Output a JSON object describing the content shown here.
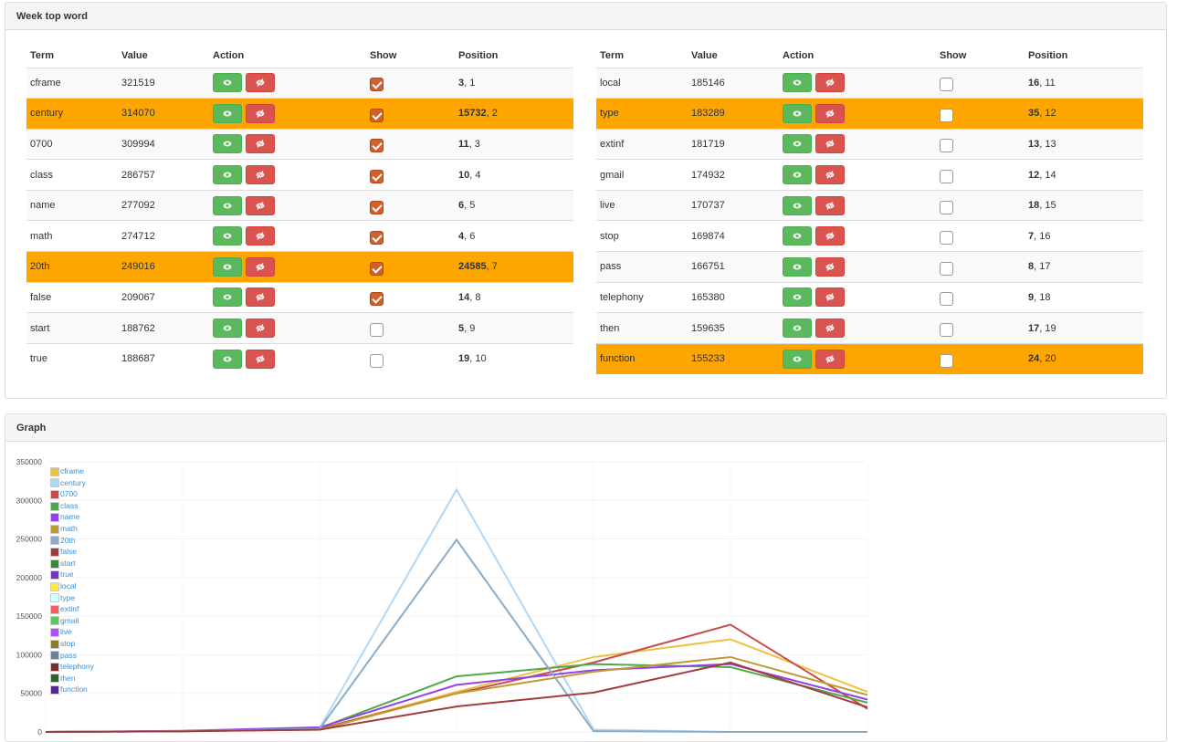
{
  "panel_top": {
    "title": "Week top word"
  },
  "panel_graph": {
    "title": "Graph"
  },
  "columns": [
    "Term",
    "Value",
    "Action",
    "Show",
    "Position"
  ],
  "highlight_color": "#ffa500",
  "left_table": [
    {
      "term": "cframe",
      "value": "321519",
      "show": true,
      "pos_bold": "3",
      "pos": ", 1",
      "highlight": false
    },
    {
      "term": "century",
      "value": "314070",
      "show": true,
      "pos_bold": "15732",
      "pos": ", 2",
      "highlight": true
    },
    {
      "term": "0700",
      "value": "309994",
      "show": true,
      "pos_bold": "11",
      "pos": ", 3",
      "highlight": false
    },
    {
      "term": "class",
      "value": "286757",
      "show": true,
      "pos_bold": "10",
      "pos": ", 4",
      "highlight": false
    },
    {
      "term": "name",
      "value": "277092",
      "show": true,
      "pos_bold": "6",
      "pos": ", 5",
      "highlight": false
    },
    {
      "term": "math",
      "value": "274712",
      "show": true,
      "pos_bold": "4",
      "pos": ", 6",
      "highlight": false
    },
    {
      "term": "20th",
      "value": "249016",
      "show": true,
      "pos_bold": "24585",
      "pos": ", 7",
      "highlight": true
    },
    {
      "term": "false",
      "value": "209067",
      "show": true,
      "pos_bold": "14",
      "pos": ", 8",
      "highlight": false
    },
    {
      "term": "start",
      "value": "188762",
      "show": false,
      "pos_bold": "5",
      "pos": ", 9",
      "highlight": false
    },
    {
      "term": "true",
      "value": "188687",
      "show": false,
      "pos_bold": "19",
      "pos": ", 10",
      "highlight": false
    }
  ],
  "right_table": [
    {
      "term": "local",
      "value": "185146",
      "show": false,
      "pos_bold": "16",
      "pos": ", 11",
      "highlight": false
    },
    {
      "term": "type",
      "value": "183289",
      "show": false,
      "pos_bold": "35",
      "pos": ", 12",
      "highlight": true
    },
    {
      "term": "extinf",
      "value": "181719",
      "show": false,
      "pos_bold": "13",
      "pos": ", 13",
      "highlight": false
    },
    {
      "term": "gmail",
      "value": "174932",
      "show": false,
      "pos_bold": "12",
      "pos": ", 14",
      "highlight": false
    },
    {
      "term": "live",
      "value": "170737",
      "show": false,
      "pos_bold": "18",
      "pos": ", 15",
      "highlight": false
    },
    {
      "term": "stop",
      "value": "169874",
      "show": false,
      "pos_bold": "7",
      "pos": ", 16",
      "highlight": false
    },
    {
      "term": "pass",
      "value": "166751",
      "show": false,
      "pos_bold": "8",
      "pos": ", 17",
      "highlight": false
    },
    {
      "term": "telephony",
      "value": "165380",
      "show": false,
      "pos_bold": "9",
      "pos": ", 18",
      "highlight": false
    },
    {
      "term": "then",
      "value": "159635",
      "show": false,
      "pos_bold": "17",
      "pos": ", 19",
      "highlight": false
    },
    {
      "term": "function",
      "value": "155233",
      "show": false,
      "pos_bold": "24",
      "pos": ", 20",
      "highlight": true
    }
  ],
  "chart_data": {
    "type": "line",
    "ylim": [
      0,
      350000
    ],
    "yticks": [
      "0",
      "50000",
      "100000",
      "150000",
      "200000",
      "250000",
      "300000",
      "350000"
    ],
    "grid": true,
    "legend_position": "top-left",
    "legend": [
      {
        "name": "cframe",
        "color": "#edc240"
      },
      {
        "name": "century",
        "color": "#afd8f8"
      },
      {
        "name": "0700",
        "color": "#cb4b4b"
      },
      {
        "name": "class",
        "color": "#4da74d"
      },
      {
        "name": "name",
        "color": "#9440ed"
      },
      {
        "name": "math",
        "color": "#bd9b33"
      },
      {
        "name": "20th",
        "color": "#8cacc6"
      },
      {
        "name": "false",
        "color": "#a23c3c"
      },
      {
        "name": "start",
        "color": "#3d853d"
      },
      {
        "name": "true",
        "color": "#7633bd"
      },
      {
        "name": "local",
        "color": "#ffe84c"
      },
      {
        "name": "type",
        "color": "#d5ffff"
      },
      {
        "name": "extinf",
        "color": "#f45e5e"
      },
      {
        "name": "gmail",
        "color": "#5cc85c"
      },
      {
        "name": "live",
        "color": "#b14cff"
      },
      {
        "name": "stop",
        "color": "#8e7a28"
      },
      {
        "name": "pass",
        "color": "#6c8294"
      },
      {
        "name": "telephony",
        "color": "#792d2d"
      },
      {
        "name": "then",
        "color": "#2e632e"
      },
      {
        "name": "function",
        "color": "#582692"
      }
    ],
    "series": [
      {
        "name": "cframe",
        "values": [
          0,
          1000,
          4000,
          52000,
          97000,
          120000,
          52000
        ]
      },
      {
        "name": "century",
        "values": [
          0,
          1000,
          5000,
          314000,
          3000,
          0,
          0
        ]
      },
      {
        "name": "0700",
        "values": [
          0,
          1000,
          4000,
          50000,
          90000,
          139000,
          30000
        ]
      },
      {
        "name": "class",
        "values": [
          0,
          1000,
          5000,
          72000,
          88000,
          84000,
          38000
        ]
      },
      {
        "name": "name",
        "values": [
          0,
          1500,
          6000,
          61000,
          80000,
          88000,
          42000
        ]
      },
      {
        "name": "math",
        "values": [
          0,
          1000,
          3000,
          50000,
          78000,
          97000,
          48000
        ]
      },
      {
        "name": "20th",
        "values": [
          0,
          1000,
          4000,
          249000,
          1000,
          0,
          0
        ]
      },
      {
        "name": "false",
        "values": [
          0,
          800,
          3000,
          33000,
          51000,
          90000,
          32000
        ]
      }
    ]
  }
}
